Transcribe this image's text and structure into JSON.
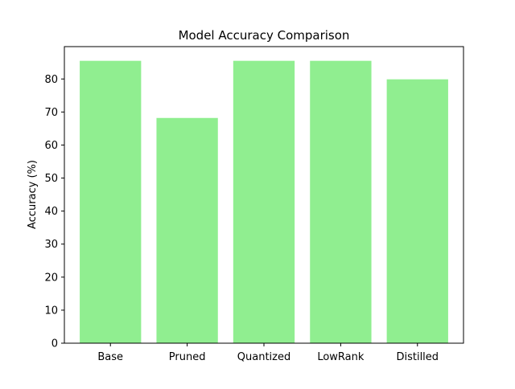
{
  "chart_data": {
    "type": "bar",
    "title": "Model Accuracy Comparison",
    "xlabel": "",
    "ylabel": "Accuracy (%)",
    "categories": [
      "Base",
      "Pruned",
      "Quantized",
      "LowRank",
      "Distilled"
    ],
    "values": [
      85.5,
      68.2,
      85.5,
      85.5,
      79.9
    ],
    "ylim": [
      0,
      89.8
    ],
    "yticks": [
      0,
      10,
      20,
      30,
      40,
      50,
      60,
      70,
      80
    ],
    "bar_color": "#90ee90",
    "grid": false,
    "legend": "none"
  }
}
